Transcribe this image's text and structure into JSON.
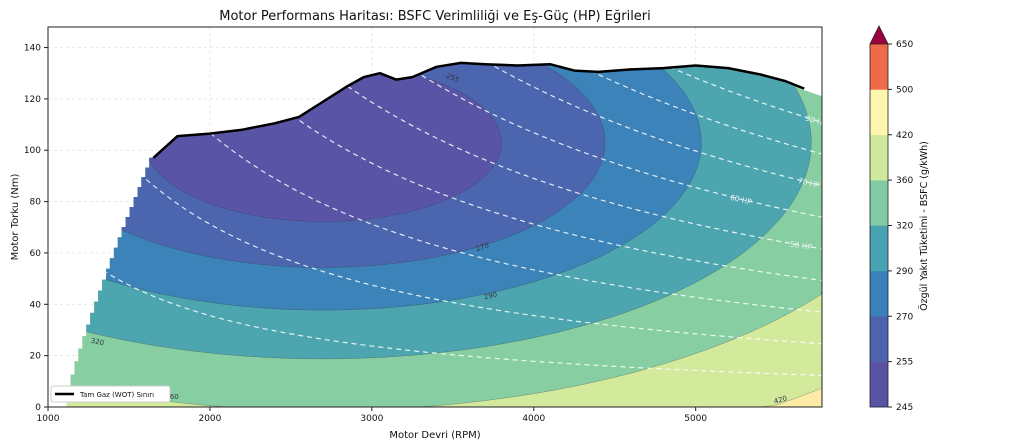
{
  "chart_data": {
    "type": "contour",
    "title": "Motor Performans Haritası: BSFC Verimliliği ve Eş-Güç (HP) Eğrileri",
    "xlabel": "Motor Devri (RPM)",
    "ylabel": "Motor Torku (Nm)",
    "xlim": [
      1000,
      5780
    ],
    "ylim": [
      0,
      148
    ],
    "xticks": [
      "1000",
      "2000",
      "3000",
      "4000",
      "5000"
    ],
    "yticks": [
      "0",
      "20",
      "40",
      "60",
      "80",
      "100",
      "120",
      "140"
    ],
    "grid": true,
    "colorbar": {
      "label": "Özgül Yakıt Tüketimi - BSFC (g/kWh)",
      "levels": [
        245,
        255,
        270,
        290,
        320,
        360,
        420,
        500,
        650
      ],
      "tick_labels": [
        "245",
        "255",
        "270",
        "290",
        "320",
        "360",
        "420",
        "500",
        "650"
      ],
      "colors": [
        "#5a53a4",
        "#4d63ad",
        "#3a80ba",
        "#48a2b1",
        "#80cba4",
        "#cfe99c",
        "#fef5ae",
        "#ee6a48"
      ],
      "extend_color": "#9e0142"
    },
    "contour_labels": [
      "255",
      "270",
      "290",
      "320",
      "360",
      "420"
    ],
    "wot_curve": {
      "name": "Tam Gaz (WOT) Sınırı",
      "rpm": [
        1650,
        1800,
        2000,
        2200,
        2400,
        2550,
        2700,
        2850,
        2950,
        3050,
        3150,
        3250,
        3400,
        3550,
        3700,
        3900,
        4100,
        4250,
        4400,
        4600,
        4800,
        5000,
        5200,
        5400,
        5550,
        5670
      ],
      "torque": [
        97,
        105.5,
        106.5,
        108,
        110.5,
        113,
        119,
        125,
        128.5,
        130,
        127.5,
        128.5,
        132.5,
        134,
        133.5,
        133,
        133.5,
        131,
        130.5,
        131.5,
        132,
        133,
        132,
        129.5,
        127,
        124
      ]
    },
    "hp_lines": {
      "values": [
        10,
        20,
        30,
        40,
        50,
        60,
        70,
        80,
        90,
        100
      ],
      "labels": {
        "50": "50 HP",
        "60": "60 HP",
        "70": "70 HP",
        "90": "90 HP",
        "100": "100 HP"
      }
    },
    "legend": {
      "position": "lower-left",
      "entries": [
        "Tam Gaz (WOT) Sınırı"
      ]
    }
  }
}
